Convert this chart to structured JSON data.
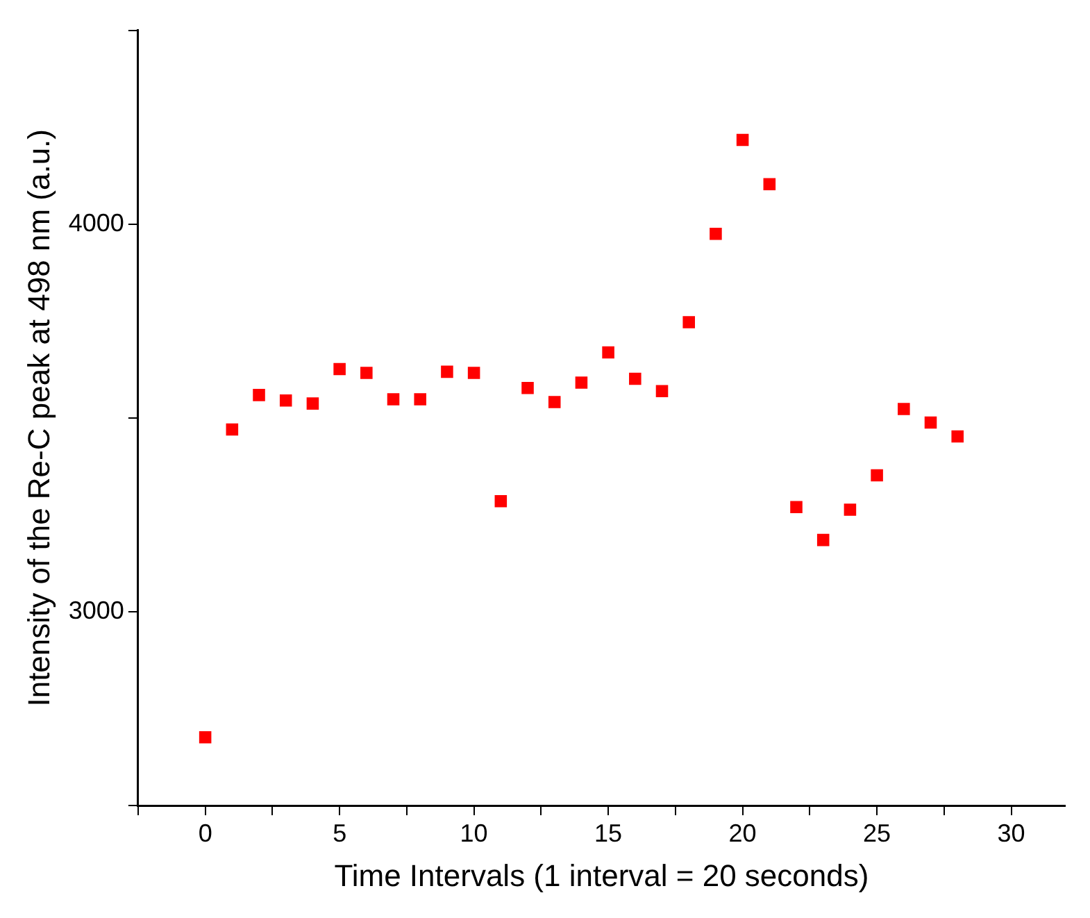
{
  "chart_data": {
    "type": "scatter",
    "xlabel": "Time Intervals (1 interval = 20 seconds)",
    "ylabel": "Intensity of the Re-C peak at 498 nm (a.u.)",
    "x": [
      0,
      1,
      2,
      3,
      4,
      5,
      6,
      7,
      8,
      9,
      10,
      11,
      12,
      13,
      14,
      15,
      16,
      17,
      18,
      19,
      20,
      21,
      22,
      23,
      24,
      25,
      26,
      27,
      28
    ],
    "series": [
      {
        "color": "#ff0000",
        "values": [
          2676,
          3470,
          3559,
          3545,
          3537,
          3626,
          3616,
          3548,
          3548,
          3619,
          3616,
          3285,
          3577,
          3541,
          3591,
          3669,
          3601,
          3569,
          3747,
          3975,
          4217,
          4103,
          3270,
          3185,
          3263,
          3352,
          3523,
          3488,
          3452
        ]
      }
    ],
    "marker": "square",
    "grid": false,
    "legend": false,
    "xlim": [
      -2.5,
      32
    ],
    "xticks": [
      {
        "value": -2.5,
        "label": null
      },
      0,
      {
        "value": 2.5,
        "label": null
      },
      5,
      {
        "value": 7.5,
        "label": null
      },
      10,
      {
        "value": 12.5,
        "label": null
      },
      15,
      {
        "value": 17.5,
        "label": null
      },
      20,
      {
        "value": 22.5,
        "label": null
      },
      25,
      {
        "value": 27.5,
        "label": null
      },
      30
    ],
    "ylim": [
      2500,
      4500
    ],
    "yticks": [
      {
        "value": 2500,
        "label": null
      },
      3000,
      {
        "value": 3500,
        "label": null
      },
      4000,
      {
        "value": 4500,
        "label": null
      }
    ]
  }
}
